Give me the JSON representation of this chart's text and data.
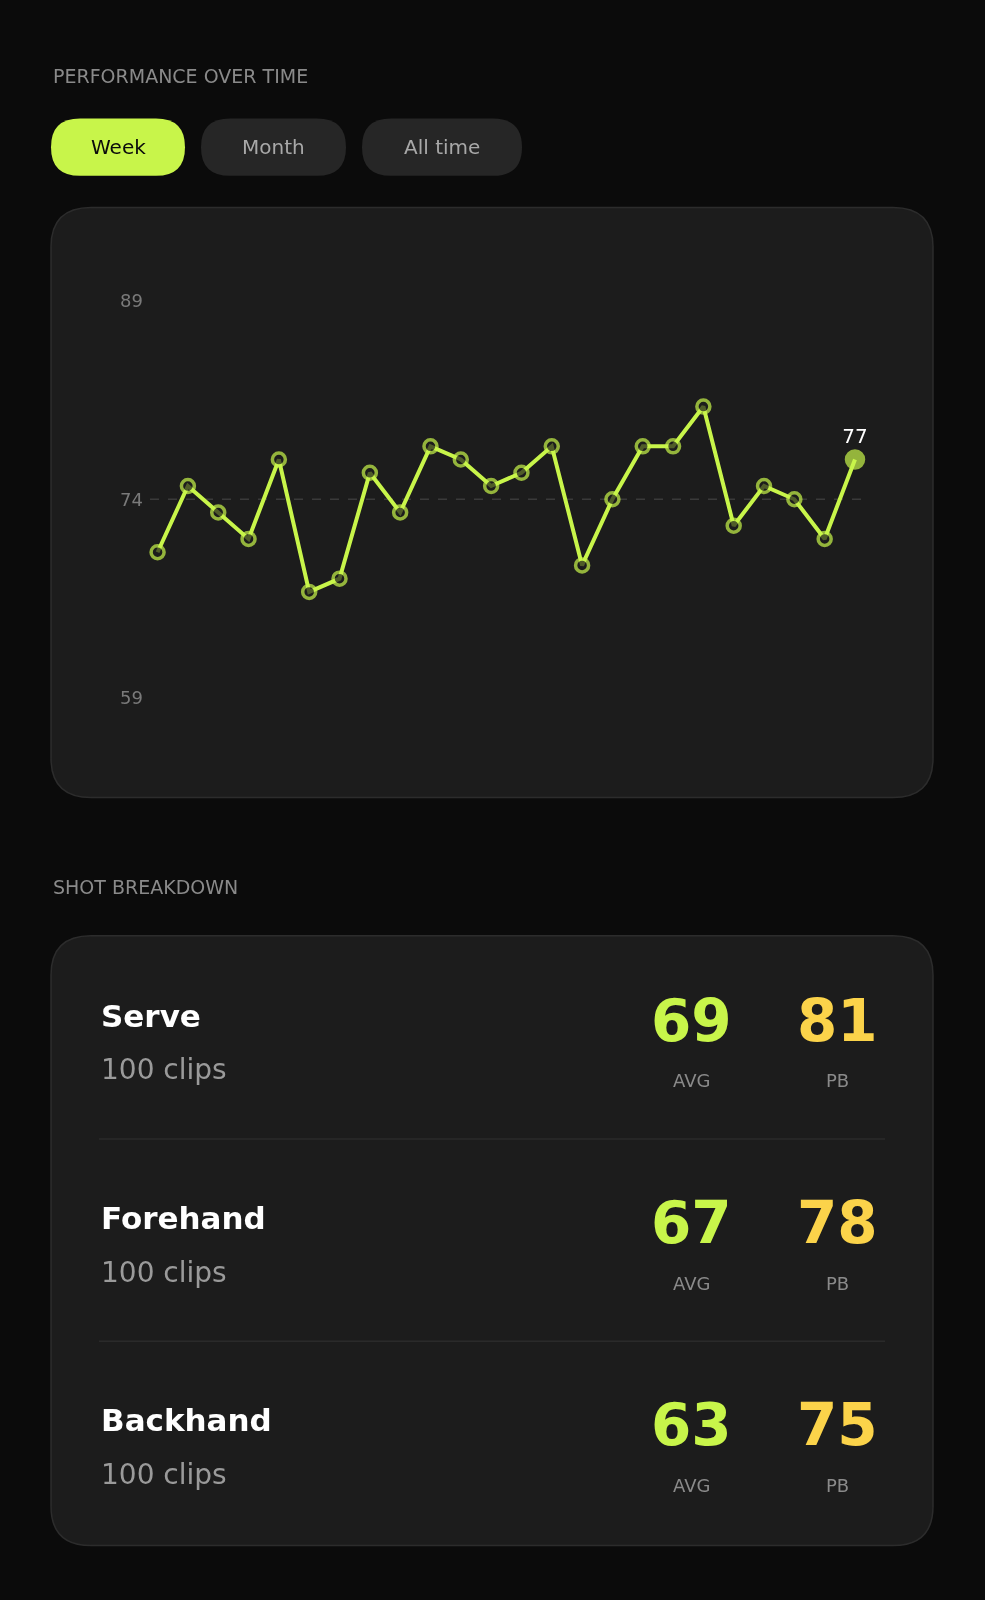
{
  "chart_data": [
    {
      "type": "line",
      "title": "PERFORMANCE OVER TIME",
      "annotations": [
        "Week",
        "Month",
        "All time"
      ],
      "categories": [
        null,
        null,
        null,
        null,
        null,
        null,
        null,
        null,
        null,
        null,
        null,
        null,
        null,
        null,
        null,
        null,
        null,
        null,
        null,
        null,
        null,
        null,
        null,
        null
      ],
      "series": [
        {
          "color": "#c8f54a",
          "values": [
            70,
            75,
            73,
            71,
            77,
            67,
            68,
            76,
            73,
            78,
            77,
            75,
            76,
            78,
            69,
            74,
            78,
            78,
            81,
            72,
            75,
            74,
            71,
            77
          ],
          "value_labels": [
            null,
            null,
            null,
            null,
            null,
            null,
            null,
            null,
            null,
            null,
            null,
            null,
            null,
            null,
            null,
            null,
            null,
            null,
            null,
            null,
            null,
            null,
            null,
            "77"
          ]
        }
      ],
      "ylim": [
        59,
        89
      ],
      "yticks": [
        59,
        74,
        89
      ],
      "tick_labels": "y",
      "marker": "circle",
      "line_style": "solid",
      "ref_lines": [
        {
          "axis": "y",
          "value": 74,
          "color": "#3a3a3a",
          "line_style": "dashed"
        }
      ]
    },
    {
      "type": "other",
      "title": "SHOT BREAKDOWN",
      "annotations": [
        "Serve",
        "100 clips",
        "69",
        "AVG",
        "81",
        "PB",
        "Forehand",
        "100 clips",
        "67",
        "AVG",
        "78",
        "PB",
        "Backhand",
        "100 clips",
        "63",
        "AVG",
        "75",
        "PB"
      ]
    }
  ]
}
